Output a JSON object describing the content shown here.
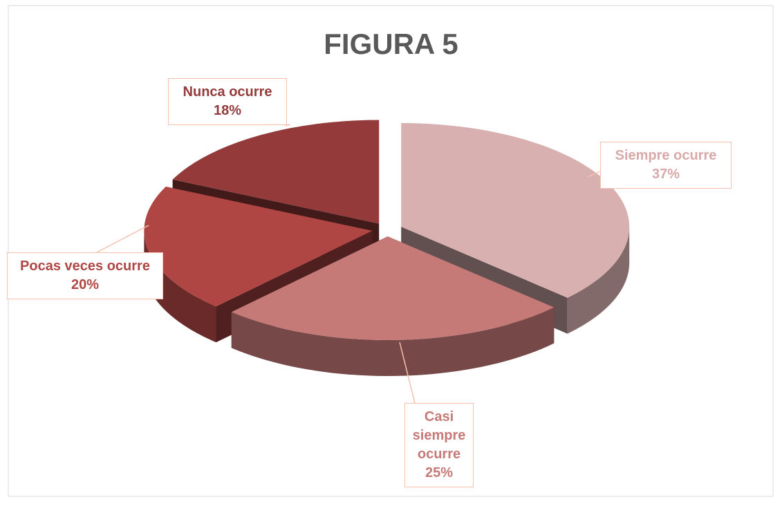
{
  "chart_data": {
    "type": "pie3d",
    "title": "FIGURA 5",
    "categories": [
      "Siempre ocurre",
      "Casi siempre ocurre",
      "Pocas veces ocurre",
      "Nunca ocurre"
    ],
    "values": [
      37,
      25,
      20,
      18
    ],
    "value_labels": [
      "37%",
      "25%",
      "20%",
      "18%"
    ],
    "colors": [
      "#d9b0b0",
      "#c57a78",
      "#b04644",
      "#953a3a"
    ]
  }
}
